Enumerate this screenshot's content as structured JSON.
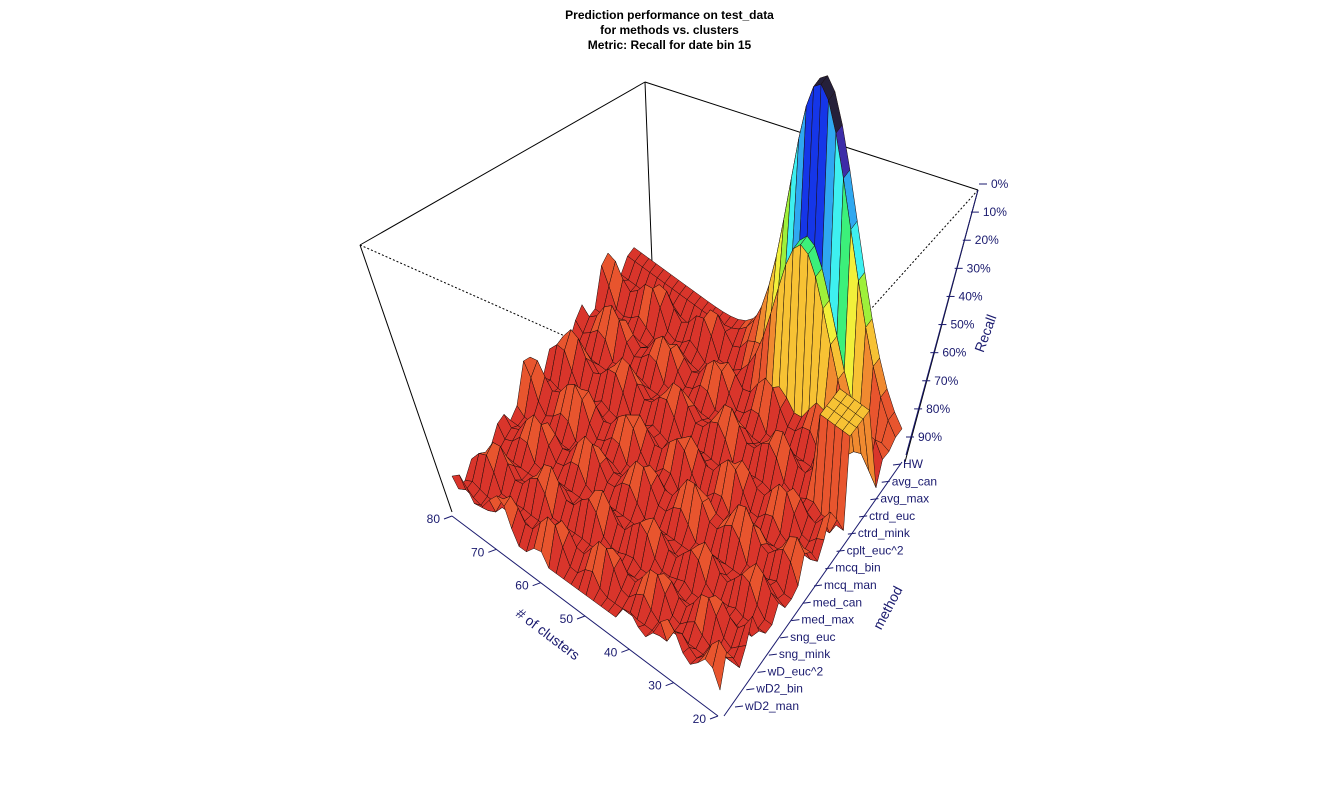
{
  "chart_data": {
    "type": "surface3d",
    "title": "Prediction performance on test_data",
    "subtitle_lines": [
      "for methods vs. clusters",
      "Metric: Recall for date bin 15"
    ],
    "xlabel": "# of clusters",
    "ylabel": "method",
    "zlabel": "Recall",
    "x_ticks": [
      "20",
      "30",
      "40",
      "50",
      "60",
      "70",
      "80"
    ],
    "xlim": [
      20,
      80
    ],
    "methods": [
      "HW",
      "avg_can",
      "avg_max",
      "ctrd_euc",
      "ctrd_mink",
      "cplt_euc^2",
      "mcq_bin",
      "mcq_man",
      "med_can",
      "med_max",
      "sng_euc",
      "sng_mink",
      "wD_euc^2",
      "wD2_bin",
      "wD2_man"
    ],
    "z_ticks": [
      "0%",
      "10%",
      "20%",
      "30%",
      "40%",
      "50%",
      "60%",
      "70%",
      "80%",
      "90%"
    ],
    "zlim": [
      0,
      1
    ],
    "z_axis_reversed": true,
    "color_scale": [
      "#d9352b",
      "#e8552e",
      "#f08a30",
      "#f7c234",
      "#f2f03a",
      "#9ef03a",
      "#3cf07a",
      "#3ef0f0",
      "#2fa8f0",
      "#1536e8",
      "#3d2ca8",
      "#25203a"
    ],
    "approx_recall_by_method": {
      "HW": 0.5,
      "avg_can": 0.97,
      "avg_max": 0.95,
      "ctrd_euc": 0.97,
      "ctrd_mink": 0.95,
      "cplt_euc^2": 0.96,
      "mcq_bin": 0.95,
      "mcq_man": 0.96,
      "med_can": 0.94,
      "med_max": 0.96,
      "sng_euc": 0.97,
      "sng_mink": 0.96,
      "wD_euc^2": 0.97,
      "wD2_bin": 0.96,
      "wD2_man": 0.97
    },
    "grid": false
  }
}
